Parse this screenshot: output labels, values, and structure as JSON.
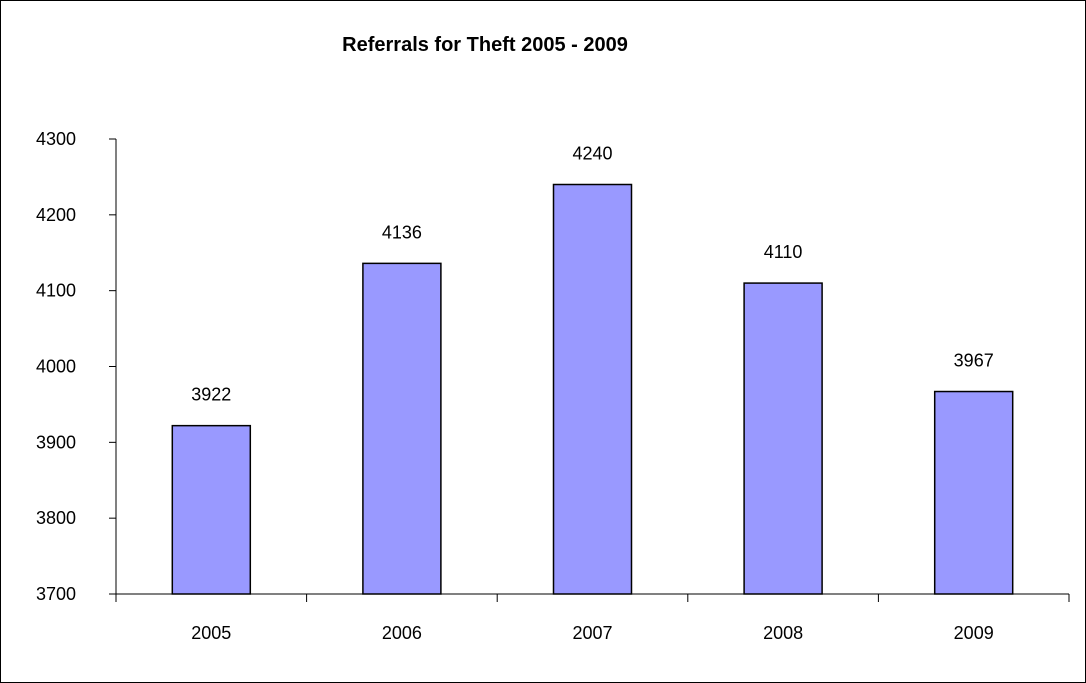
{
  "chart_data": {
    "type": "bar",
    "title": "Referrals for Theft 2005 - 2009",
    "xlabel": "",
    "ylabel": "",
    "categories": [
      "2005",
      "2006",
      "2007",
      "2008",
      "2009"
    ],
    "values": [
      3922,
      4136,
      4240,
      4110,
      3967
    ],
    "ylim": [
      3700,
      4300
    ],
    "yticks": [
      3700,
      3800,
      3900,
      4000,
      4100,
      4200,
      4300
    ],
    "grid": false,
    "legend": "none",
    "bar_color": "#9999ff",
    "bar_border_color": "#000000"
  }
}
